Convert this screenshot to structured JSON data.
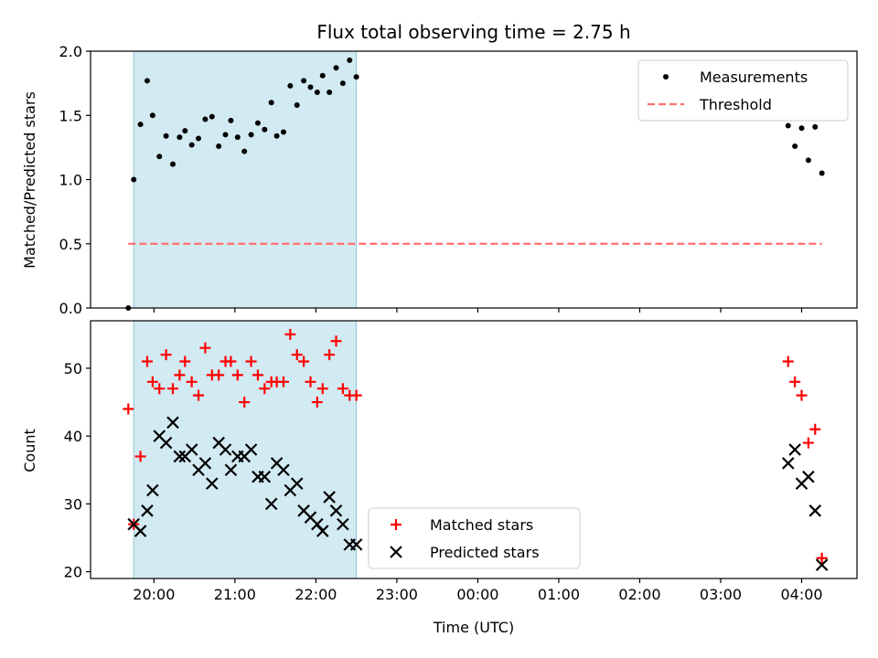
{
  "chart_data": [
    {
      "type": "scatter",
      "title": "Flux total observing time = 2.75 h",
      "xlabel": "",
      "ylabel": "Matched/Predicted stars",
      "ylim": [
        0.0,
        2.0
      ],
      "yticks": [
        "0.0",
        "0.5",
        "1.0",
        "1.5",
        "2.0"
      ],
      "xlim": [
        "19:13",
        "04:41"
      ],
      "xtick_labels": [
        "20:00",
        "21:00",
        "22:00",
        "23:00",
        "00:00",
        "01:00",
        "02:00",
        "03:00",
        "04:00"
      ],
      "shaded_interval": [
        "19:45",
        "22:30"
      ],
      "shade_color": "#add8e6",
      "legend": {
        "position": "upper right",
        "entries": [
          "Measurements",
          "Threshold"
        ]
      },
      "series": [
        {
          "name": "Measurements",
          "marker": "dot",
          "color": "#000000",
          "x": [
            "19:41",
            "19:45",
            "19:50",
            "19:55",
            "19:59",
            "20:04",
            "20:09",
            "20:14",
            "20:19",
            "20:23",
            "20:28",
            "20:33",
            "20:38",
            "20:43",
            "20:48",
            "20:53",
            "20:57",
            "21:02",
            "21:07",
            "21:12",
            "21:17",
            "21:22",
            "21:27",
            "21:31",
            "21:36",
            "21:41",
            "21:46",
            "21:51",
            "21:56",
            "22:01",
            "22:05",
            "22:10",
            "22:15",
            "22:20",
            "22:25",
            "22:30",
            "03:50",
            "03:55",
            "04:00",
            "04:05",
            "04:10",
            "04:15"
          ],
          "y": [
            0.0,
            1.0,
            1.43,
            1.77,
            1.5,
            1.18,
            1.34,
            1.12,
            1.33,
            1.38,
            1.27,
            1.32,
            1.47,
            1.49,
            1.26,
            1.35,
            1.46,
            1.33,
            1.22,
            1.35,
            1.44,
            1.39,
            1.6,
            1.34,
            1.37,
            1.73,
            1.58,
            1.77,
            1.72,
            1.68,
            1.81,
            1.68,
            1.87,
            1.75,
            1.93,
            1.8,
            1.42,
            1.26,
            1.4,
            1.15,
            1.41,
            1.05
          ]
        },
        {
          "name": "Threshold",
          "style": "dashed",
          "color": "#ff6f6f",
          "x": [
            "19:41",
            "04:15"
          ],
          "y": [
            0.5,
            0.5
          ]
        }
      ]
    },
    {
      "type": "scatter",
      "xlabel": "Time (UTC)",
      "ylabel": "Count",
      "ylim": [
        19,
        57
      ],
      "yticks": [
        "20",
        "30",
        "40",
        "50"
      ],
      "xlim": [
        "19:13",
        "04:41"
      ],
      "xtick_labels": [
        "20:00",
        "21:00",
        "22:00",
        "23:00",
        "00:00",
        "01:00",
        "02:00",
        "03:00",
        "04:00"
      ],
      "shaded_interval": [
        "19:45",
        "22:30"
      ],
      "shade_color": "#add8e6",
      "legend": {
        "position": "lower center",
        "entries": [
          "Matched stars",
          "Predicted stars"
        ]
      },
      "series": [
        {
          "name": "Matched stars",
          "marker": "plus",
          "color": "#ff0000",
          "x": [
            "19:41",
            "19:45",
            "19:50",
            "19:55",
            "19:59",
            "20:04",
            "20:09",
            "20:14",
            "20:19",
            "20:23",
            "20:28",
            "20:33",
            "20:38",
            "20:43",
            "20:48",
            "20:53",
            "20:57",
            "21:02",
            "21:07",
            "21:12",
            "21:17",
            "21:22",
            "21:27",
            "21:31",
            "21:36",
            "21:41",
            "21:46",
            "21:51",
            "21:56",
            "22:01",
            "22:05",
            "22:10",
            "22:15",
            "22:20",
            "22:25",
            "22:30",
            "03:50",
            "03:55",
            "04:00",
            "04:05",
            "04:10",
            "04:15"
          ],
          "y": [
            44,
            27,
            37,
            51,
            48,
            47,
            52,
            47,
            49,
            51,
            48,
            46,
            53,
            49,
            49,
            51,
            51,
            49,
            45,
            51,
            49,
            47,
            48,
            48,
            48,
            55,
            52,
            51,
            48,
            45,
            47,
            52,
            54,
            47,
            46,
            46,
            51,
            48,
            46,
            39,
            41,
            22
          ]
        },
        {
          "name": "Predicted stars",
          "marker": "x",
          "color": "#000000",
          "x": [
            "19:45",
            "19:50",
            "19:55",
            "19:59",
            "20:04",
            "20:09",
            "20:14",
            "20:19",
            "20:23",
            "20:28",
            "20:33",
            "20:38",
            "20:43",
            "20:48",
            "20:53",
            "20:57",
            "21:02",
            "21:07",
            "21:12",
            "21:17",
            "21:22",
            "21:27",
            "21:31",
            "21:36",
            "21:41",
            "21:46",
            "21:51",
            "21:56",
            "22:01",
            "22:05",
            "22:10",
            "22:15",
            "22:20",
            "22:25",
            "22:30",
            "03:50",
            "03:55",
            "04:00",
            "04:05",
            "04:10",
            "04:15"
          ],
          "y": [
            27,
            26,
            29,
            32,
            40,
            39,
            42,
            37,
            37,
            38,
            35,
            36,
            33,
            39,
            38,
            35,
            37,
            37,
            38,
            34,
            34,
            30,
            36,
            35,
            32,
            33,
            29,
            28,
            27,
            26,
            31,
            29,
            27,
            24,
            24,
            36,
            38,
            33,
            34,
            29,
            21
          ]
        }
      ]
    }
  ]
}
